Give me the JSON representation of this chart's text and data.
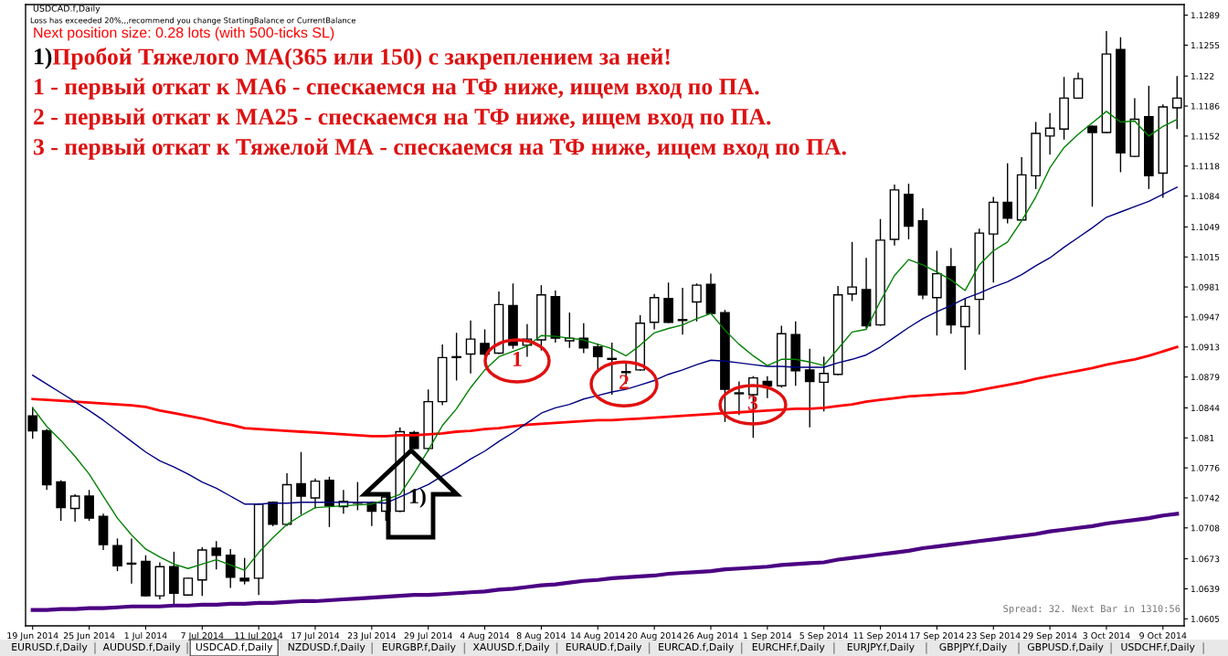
{
  "chart_data": {
    "type": "candlestick",
    "title": "USDCAD.f,Daily",
    "categories": [
      "19 Jun 2014",
      null,
      null,
      null,
      "25 Jun 2014",
      null,
      null,
      null,
      "1 Jul 2014",
      null,
      null,
      null,
      "7 Jul 2014",
      null,
      null,
      null,
      "11 Jul 2014",
      null,
      null,
      null,
      "17 Jul 2014",
      null,
      null,
      null,
      "23 Jul 2014",
      null,
      null,
      null,
      "29 Jul 2014",
      null,
      null,
      null,
      "4 Aug 2014",
      null,
      null,
      null,
      "8 Aug 2014",
      null,
      null,
      null,
      "14 Aug 2014",
      null,
      null,
      null,
      "20 Aug 2014",
      null,
      null,
      null,
      "26 Aug 2014",
      null,
      null,
      null,
      "1 Sep 2014",
      null,
      null,
      null,
      "5 Sep 2014",
      null,
      null,
      null,
      "11 Sep 2014",
      null,
      null,
      null,
      "17 Sep 2014",
      null,
      null,
      null,
      "23 Sep 2014",
      null,
      null,
      null,
      "29 Sep 2014",
      null,
      null,
      null,
      "3 Oct 2014",
      null,
      null,
      null,
      "9 Oct 2014",
      null
    ],
    "ohlc": [
      [
        1.0835,
        1.0845,
        1.0809,
        1.0818
      ],
      [
        1.0818,
        1.082,
        1.0751,
        1.0757
      ],
      [
        1.076,
        1.0762,
        1.0716,
        1.0731
      ],
      [
        1.073,
        1.0746,
        1.0715,
        1.0744
      ],
      [
        1.0744,
        1.0751,
        1.0716,
        1.0719
      ],
      [
        1.0721,
        1.0724,
        1.0683,
        1.0689
      ],
      [
        1.0688,
        1.0696,
        1.0659,
        1.0665
      ],
      [
        1.0668,
        1.0696,
        1.0645,
        1.0667
      ],
      [
        1.067,
        1.0677,
        1.063,
        1.0631
      ],
      [
        1.0631,
        1.0669,
        1.0627,
        1.0664
      ],
      [
        1.0664,
        1.0681,
        1.0621,
        1.0634
      ],
      [
        1.0632,
        1.0652,
        1.0631,
        1.0651
      ],
      [
        1.0649,
        1.0686,
        1.0631,
        1.0683
      ],
      [
        1.0685,
        1.0693,
        1.0661,
        1.0677
      ],
      [
        1.0677,
        1.0684,
        1.064,
        1.0652
      ],
      [
        1.0651,
        1.0674,
        1.0644,
        1.0648
      ],
      [
        1.0651,
        1.0736,
        1.0632,
        1.0735
      ],
      [
        1.0737,
        1.0738,
        1.071,
        1.0712
      ],
      [
        1.0712,
        1.077,
        1.071,
        1.0757
      ],
      [
        1.0758,
        1.0794,
        1.0723,
        1.0744
      ],
      [
        1.0742,
        1.0764,
        1.073,
        1.0761
      ],
      [
        1.0762,
        1.0766,
        1.0709,
        1.0733
      ],
      [
        1.0732,
        1.0751,
        1.0724,
        1.0738
      ],
      [
        1.0737,
        1.076,
        1.0728,
        1.0736
      ],
      [
        1.0737,
        1.0738,
        1.071,
        1.0727
      ],
      [
        1.0727,
        1.0745,
        1.0716,
        1.0743
      ],
      [
        1.0727,
        1.0822,
        1.0726,
        1.0817
      ],
      [
        1.0816,
        1.0818,
        1.0797,
        1.0798
      ],
      [
        1.0798,
        1.0865,
        1.0795,
        1.0851
      ],
      [
        1.0851,
        1.0916,
        1.0847,
        1.0901
      ],
      [
        1.0901,
        1.0929,
        1.0875,
        1.0902
      ],
      [
        1.0905,
        1.0943,
        1.0883,
        1.0922
      ],
      [
        1.0917,
        1.0933,
        1.0902,
        1.0905
      ],
      [
        1.0906,
        1.0976,
        1.0905,
        1.0961
      ],
      [
        1.096,
        1.0985,
        1.0911,
        1.0915
      ],
      [
        1.0915,
        1.0939,
        1.0902,
        1.0922
      ],
      [
        1.0921,
        1.0983,
        1.0909,
        1.0972
      ],
      [
        1.097,
        1.0977,
        1.0918,
        1.0923
      ],
      [
        1.092,
        1.0952,
        1.0912,
        1.0923
      ],
      [
        1.0923,
        1.094,
        1.0906,
        1.0912
      ],
      [
        1.0913,
        1.0917,
        1.0887,
        1.0902
      ],
      [
        1.09,
        1.0918,
        1.0859,
        1.0899
      ],
      [
        1.0885,
        1.0897,
        1.0871,
        1.0884
      ],
      [
        1.0887,
        1.0949,
        1.0886,
        1.094
      ],
      [
        1.0941,
        1.0973,
        1.0933,
        1.0969
      ],
      [
        1.0968,
        1.0986,
        1.094,
        1.0941
      ],
      [
        1.0943,
        1.098,
        1.0927,
        1.0944
      ],
      [
        1.0964,
        1.0985,
        1.0942,
        1.0983
      ],
      [
        1.0984,
        1.0996,
        1.095,
        1.0951
      ],
      [
        1.0952,
        1.0955,
        1.0828,
        1.0865
      ],
      [
        1.0861,
        1.0874,
        1.0836,
        1.086
      ],
      [
        1.0859,
        1.088,
        1.081,
        1.0878
      ],
      [
        1.0874,
        1.088,
        1.0855,
        1.0869
      ],
      [
        1.0869,
        1.0937,
        1.0867,
        1.0928
      ],
      [
        1.0927,
        1.0942,
        1.0869,
        1.0886
      ],
      [
        1.0887,
        1.0911,
        1.0822,
        1.0874
      ],
      [
        1.0873,
        1.0902,
        1.084,
        1.0883
      ],
      [
        1.0882,
        1.0982,
        1.0881,
        1.0972
      ],
      [
        1.0973,
        1.1032,
        1.0965,
        1.0981
      ],
      [
        1.0978,
        1.1014,
        1.0934,
        1.0937
      ],
      [
        1.0938,
        1.1058,
        1.0937,
        1.1034
      ],
      [
        1.1035,
        1.1097,
        1.1028,
        1.1091
      ],
      [
        1.1086,
        1.1098,
        1.1035,
        1.105
      ],
      [
        1.1056,
        1.107,
        1.0967,
        1.0972
      ],
      [
        1.0969,
        1.1022,
        1.0926,
        1.0996
      ],
      [
        1.1004,
        1.1025,
        1.0928,
        1.0938
      ],
      [
        1.0936,
        1.0968,
        1.0887,
        1.0959
      ],
      [
        1.0967,
        1.1047,
        1.0927,
        1.1042
      ],
      [
        1.1041,
        1.1083,
        1.0986,
        1.1077
      ],
      [
        1.1077,
        1.1121,
        1.1053,
        1.1059
      ],
      [
        1.1057,
        1.1128,
        1.1057,
        1.1108
      ],
      [
        1.1107,
        1.1168,
        1.1092,
        1.1155
      ],
      [
        1.1152,
        1.1178,
        1.1131,
        1.1161
      ],
      [
        1.116,
        1.1219,
        1.1148,
        1.1195
      ],
      [
        1.1195,
        1.1224,
        1.1194,
        1.1217
      ],
      [
        1.1163,
        1.1164,
        1.1072,
        1.1156
      ],
      [
        1.1156,
        1.1271,
        1.1155,
        1.1245
      ],
      [
        1.125,
        1.1264,
        1.1111,
        1.1133
      ],
      [
        1.1129,
        1.1195,
        1.1128,
        1.1171
      ],
      [
        1.1174,
        1.1209,
        1.1092,
        1.1107
      ],
      [
        1.111,
        1.1188,
        1.1082,
        1.1185
      ],
      [
        1.1184,
        1.122,
        1.116,
        1.1195
      ]
    ],
    "series": [
      {
        "type": "line",
        "color": "#4b0082",
        "values": [
          1.0615,
          1.0615,
          1.0616,
          1.0616,
          1.0617,
          1.0617,
          1.0618,
          1.0619,
          1.0619,
          1.0619,
          1.062,
          1.062,
          1.0621,
          1.0621,
          1.0622,
          1.0622,
          1.0623,
          1.0623,
          1.0624,
          1.0625,
          1.0625,
          1.0626,
          1.0627,
          1.0628,
          1.0629,
          1.063,
          1.0631,
          1.0632,
          1.0632,
          1.0633,
          1.0634,
          1.0635,
          1.0636,
          1.0638,
          1.0639,
          1.0641,
          1.0643,
          1.0644,
          1.0646,
          1.0648,
          1.0649,
          1.0651,
          1.0652,
          1.0653,
          1.0654,
          1.0656,
          1.0657,
          1.0658,
          1.0659,
          1.0661,
          1.0662,
          1.0663,
          1.0664,
          1.0666,
          1.0667,
          1.0668,
          1.0669,
          1.0672,
          1.0674,
          1.0676,
          1.0678,
          1.068,
          1.0682,
          1.0685,
          1.0687,
          1.0689,
          1.0691,
          1.0693,
          1.0695,
          1.0697,
          1.0699,
          1.0701,
          1.0704,
          1.0706,
          1.0708,
          1.071,
          1.0713,
          1.0715,
          1.0717,
          1.0719,
          1.0722,
          1.0724
        ]
      },
      {
        "type": "line",
        "color": "#ff0000",
        "values": [
          1.0854,
          1.0853,
          1.0852,
          1.0851,
          1.085,
          1.0849,
          1.0848,
          1.0847,
          1.0845,
          1.0841,
          1.0838,
          1.0835,
          1.0832,
          1.0828,
          1.0825,
          1.0821,
          1.082,
          1.0819,
          1.0818,
          1.0817,
          1.0816,
          1.0815,
          1.0814,
          1.0813,
          1.0812,
          1.0812,
          1.0813,
          1.0813,
          1.0814,
          1.0815,
          1.0817,
          1.0818,
          1.082,
          1.0821,
          1.0823,
          1.0825,
          1.0826,
          1.0827,
          1.0828,
          1.0829,
          1.083,
          1.083,
          1.0831,
          1.0832,
          1.0833,
          1.0834,
          1.0835,
          1.0836,
          1.0837,
          1.0838,
          1.0839,
          1.084,
          1.0841,
          1.0842,
          1.0843,
          1.0843,
          1.0844,
          1.0846,
          1.0848,
          1.0851,
          1.0853,
          1.0855,
          1.0857,
          1.0858,
          1.0859,
          1.086,
          1.0861,
          1.0864,
          1.0867,
          1.087,
          1.0873,
          1.0877,
          1.088,
          1.0883,
          1.0886,
          1.0889,
          1.0893,
          1.0896,
          1.0899,
          1.0903,
          1.0908,
          1.0913
        ]
      },
      {
        "type": "line",
        "color": "#000080",
        "values": [
          1.0881,
          1.0871,
          1.0861,
          1.0851,
          1.0841,
          1.083,
          1.0818,
          1.0806,
          1.0794,
          1.0784,
          1.0777,
          1.0769,
          1.076,
          1.0753,
          1.0744,
          1.0735,
          1.0735,
          1.0736,
          1.0736,
          1.0737,
          1.0737,
          1.0737,
          1.0737,
          1.0737,
          1.0737,
          1.0736,
          1.0743,
          1.075,
          1.0757,
          1.0767,
          1.0776,
          1.0786,
          1.0795,
          1.0806,
          1.0816,
          1.0827,
          1.0838,
          1.0844,
          1.0848,
          1.0854,
          1.0858,
          1.0862,
          1.0865,
          1.087,
          1.0875,
          1.0882,
          1.0887,
          1.0893,
          1.0898,
          1.0897,
          1.0895,
          1.0893,
          1.0891,
          1.0891,
          1.089,
          1.089,
          1.089,
          1.0895,
          1.0899,
          1.0904,
          1.0913,
          1.0924,
          1.0935,
          1.0945,
          1.0953,
          1.096,
          1.0968,
          1.0974,
          1.0981,
          1.0987,
          1.0995,
          1.1005,
          1.1014,
          1.1026,
          1.1037,
          1.1048,
          1.106,
          1.1066,
          1.1072,
          1.1078,
          1.1086,
          1.1094
        ]
      },
      {
        "type": "line",
        "color": "#008000",
        "values": [
          1.0844,
          1.0823,
          1.0807,
          1.0789,
          1.0769,
          1.0744,
          1.0719,
          1.07,
          1.0684,
          1.0675,
          1.0667,
          1.0662,
          1.0667,
          1.0672,
          1.0666,
          1.066,
          1.068,
          1.0697,
          1.0712,
          1.0722,
          1.0731,
          1.0732,
          1.0733,
          1.0734,
          1.0735,
          1.074,
          1.0746,
          1.077,
          1.0796,
          1.0824,
          1.0843,
          1.0867,
          1.0887,
          1.0902,
          1.0908,
          1.0914,
          1.0926,
          1.0925,
          1.0923,
          1.0921,
          1.0916,
          1.0911,
          1.0903,
          1.0915,
          1.0929,
          1.0934,
          1.0938,
          1.0945,
          1.0951,
          1.0932,
          1.0916,
          1.0903,
          1.0892,
          1.0899,
          1.0899,
          1.0896,
          1.0892,
          1.0911,
          1.093,
          1.0933,
          1.0965,
          1.0994,
          1.1012,
          1.1006,
          1.0998,
          1.0989,
          1.0977,
          1.1006,
          1.1022,
          1.1032,
          1.1056,
          1.1083,
          1.1116,
          1.1139,
          1.1154,
          1.1167,
          1.118,
          1.1168,
          1.1169,
          1.1152,
          1.1163,
          1.1171
        ]
      }
    ],
    "ylim": [
      1.0597,
      1.1301
    ],
    "yticks": [
      1.0605,
      1.0639,
      1.0673,
      1.0708,
      1.0742,
      1.0776,
      1.081,
      1.0844,
      1.0879,
      1.0913,
      1.0947,
      1.0981,
      1.1015,
      1.1049,
      1.1084,
      1.1118,
      1.1152,
      1.1186,
      1.122,
      1.1255,
      1.1289
    ],
    "grid": false,
    "legend": false,
    "annotations": [
      "Loss has exceeded 20%,,,recommend you change StartingBalance or CurrentBalance",
      "Next position size: 0.28 lots (with 500-ticks SL)",
      "1)",
      "Пробой Тяжелого МА(365 или 150) с закреплением за ней!",
      "1 - первый откат к МА6 - спескаемся на ТФ ниже, ищем вход по ПА.",
      "2 - первый откат к МА25 - спескаемся на ТФ ниже, ищем вход по ПА.",
      "3 - первый откат к Тяжелой МА - спескаемся на ТФ ниже, ищем вход по ПА.",
      "1",
      {
        "text": "2",
        "y": 1.0871
      },
      "3",
      "1)",
      "Spread: 32. Next Bar in 1310:56",
      "EURUSD.f,Daily",
      "AUDUSD.f,Daily",
      "USDCAD.f,Daily",
      "NZDUSD.f,Daily",
      "EURGBP.f,Daily",
      "XAUUSD.f,Daily",
      "EURAUD.f,Daily",
      "EURCAD.f,Daily",
      "EURCHF.f,Daily",
      "EURJPY.f,Daily",
      "GBPJPY.f,Daily",
      "GBPUSD.f,Daily",
      "USDCHF.f,Daily"
    ]
  }
}
